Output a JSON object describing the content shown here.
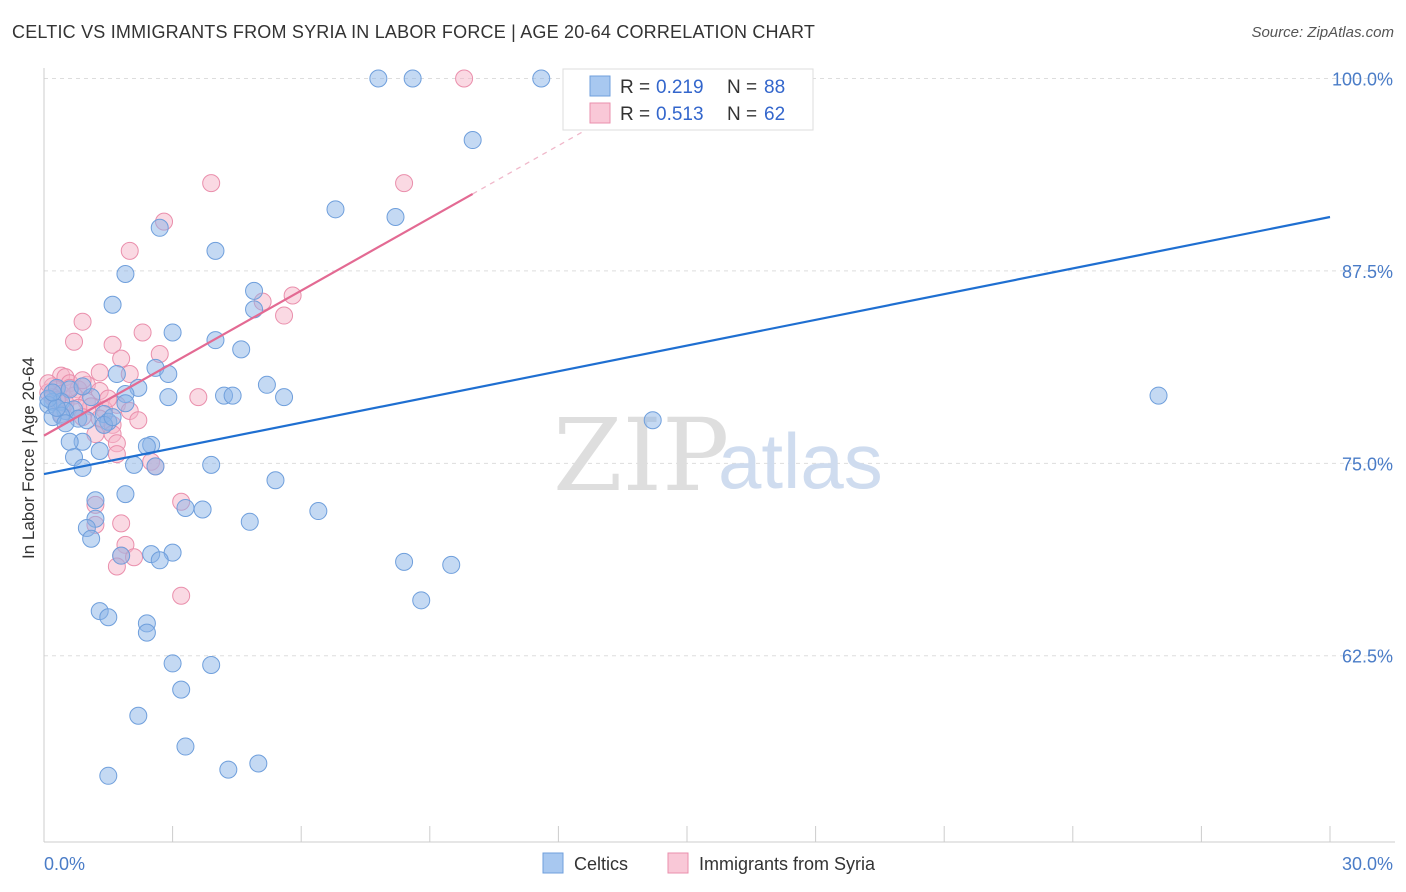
{
  "title": "CELTIC VS IMMIGRANTS FROM SYRIA IN LABOR FORCE | AGE 20-64 CORRELATION CHART",
  "source": "Source: ZipAtlas.com",
  "watermark": {
    "zip": "ZIP",
    "atlas": "atlas"
  },
  "colors": {
    "blue": "#8ab4e8",
    "blue_stroke": "#6f9fdc",
    "blue_line": "#1f6fd1",
    "pink": "#f5b3c8",
    "pink_stroke": "#ea8fac",
    "pink_line": "#e36a93",
    "grid": "#dddddd",
    "tick_text": "#4a7cc7"
  },
  "chart_data": {
    "type": "scatter",
    "title": "CELTIC VS IMMIGRANTS FROM SYRIA IN LABOR FORCE | AGE 20-64 CORRELATION CHART",
    "xlabel": "",
    "ylabel": "In Labor Force | Age 20-64",
    "xlim": [
      0,
      30
    ],
    "ylim": [
      50.4,
      101.2
    ],
    "x_tick_labels": [
      {
        "value": 0,
        "label": "0.0%"
      },
      {
        "value": 30,
        "label": "30.0%"
      }
    ],
    "y_ticks": [
      {
        "value": 100,
        "label": "100.0%"
      },
      {
        "value": 87.5,
        "label": "87.5%"
      },
      {
        "value": 75,
        "label": "75.0%"
      },
      {
        "value": 62.5,
        "label": "62.5%"
      }
    ],
    "legend": [
      {
        "r_label": "R =",
        "r_value": "0.219",
        "n_label": "N =",
        "n_value": "88"
      },
      {
        "r_label": "R =",
        "r_value": "0.513",
        "n_label": "N =",
        "n_value": "62"
      }
    ],
    "series": [
      {
        "name": "Celtics",
        "trend": {
          "x0": 0,
          "y0": 74.3,
          "x1": 30,
          "y1": 91.0,
          "dashed_to": null
        },
        "points": [
          [
            7.8,
            100
          ],
          [
            8.6,
            100
          ],
          [
            11.6,
            100
          ],
          [
            10.0,
            96
          ],
          [
            6.8,
            91.5
          ],
          [
            8.2,
            91
          ],
          [
            2.7,
            90.3
          ],
          [
            4.0,
            88.8
          ],
          [
            1.9,
            87.3
          ],
          [
            4.9,
            86.2
          ],
          [
            1.6,
            85.3
          ],
          [
            4.9,
            85.0
          ],
          [
            3.0,
            83.5
          ],
          [
            4.0,
            83
          ],
          [
            4.6,
            82.4
          ],
          [
            2.6,
            81.2
          ],
          [
            2.9,
            80.8
          ],
          [
            1.7,
            80.8
          ],
          [
            5.2,
            80.1
          ],
          [
            0.3,
            79.9
          ],
          [
            0.6,
            79.8
          ],
          [
            2.2,
            79.9
          ],
          [
            1.9,
            79.5
          ],
          [
            4.2,
            79.4
          ],
          [
            4.4,
            79.4
          ],
          [
            5.6,
            79.3
          ],
          [
            2.9,
            79.3
          ],
          [
            26.0,
            79.4
          ],
          [
            0.2,
            79.0
          ],
          [
            0.4,
            79.0
          ],
          [
            0.1,
            78.8
          ],
          [
            1.9,
            78.9
          ],
          [
            0.7,
            78.5
          ],
          [
            0.5,
            78.4
          ],
          [
            1.4,
            78.2
          ],
          [
            0.4,
            78.1
          ],
          [
            0.2,
            78.0
          ],
          [
            0.8,
            77.9
          ],
          [
            1.0,
            77.8
          ],
          [
            1.5,
            77.7
          ],
          [
            0.5,
            77.6
          ],
          [
            14.2,
            77.8
          ],
          [
            1.4,
            77.5
          ],
          [
            0.9,
            76.4
          ],
          [
            0.6,
            76.4
          ],
          [
            2.5,
            76.2
          ],
          [
            2.4,
            76.1
          ],
          [
            1.3,
            75.8
          ],
          [
            0.7,
            75.4
          ],
          [
            2.1,
            74.9
          ],
          [
            0.9,
            74.7
          ],
          [
            2.6,
            74.8
          ],
          [
            3.9,
            74.9
          ],
          [
            5.4,
            73.9
          ],
          [
            1.9,
            73.0
          ],
          [
            1.2,
            72.6
          ],
          [
            3.3,
            72.1
          ],
          [
            3.7,
            72.0
          ],
          [
            6.4,
            71.9
          ],
          [
            1.2,
            71.4
          ],
          [
            4.8,
            71.2
          ],
          [
            1.0,
            70.8
          ],
          [
            1.1,
            70.1
          ],
          [
            2.5,
            69.1
          ],
          [
            3.0,
            69.2
          ],
          [
            1.8,
            69.0
          ],
          [
            2.7,
            68.7
          ],
          [
            8.4,
            68.6
          ],
          [
            9.5,
            68.4
          ],
          [
            8.8,
            66.1
          ],
          [
            1.3,
            65.4
          ],
          [
            1.5,
            65.0
          ],
          [
            2.4,
            64.6
          ],
          [
            2.4,
            64.0
          ],
          [
            3.0,
            62.0
          ],
          [
            3.9,
            61.9
          ],
          [
            3.2,
            60.3
          ],
          [
            2.2,
            58.6
          ],
          [
            3.3,
            56.6
          ],
          [
            5.0,
            55.5
          ],
          [
            4.3,
            55.1
          ],
          [
            1.5,
            54.7
          ],
          [
            0.1,
            79.2
          ],
          [
            0.3,
            78.6
          ],
          [
            0.2,
            79.6
          ],
          [
            1.1,
            79.3
          ],
          [
            1.6,
            78.0
          ],
          [
            0.9,
            80.0
          ]
        ]
      },
      {
        "name": "Immigrants from Syria",
        "trend": {
          "x0": 0,
          "y0": 76.8,
          "x1": 10.0,
          "y1": 92.5,
          "dashed_to": {
            "x": 13.5,
            "y": 98.0
          }
        },
        "points": [
          [
            9.8,
            100
          ],
          [
            3.9,
            93.2
          ],
          [
            8.4,
            93.2
          ],
          [
            2.8,
            90.7
          ],
          [
            2.0,
            88.8
          ],
          [
            5.8,
            85.9
          ],
          [
            5.1,
            85.5
          ],
          [
            5.6,
            84.6
          ],
          [
            0.9,
            84.2
          ],
          [
            2.3,
            83.5
          ],
          [
            0.7,
            82.9
          ],
          [
            1.6,
            82.7
          ],
          [
            2.7,
            82.1
          ],
          [
            1.8,
            81.8
          ],
          [
            0.4,
            80.7
          ],
          [
            0.5,
            80.6
          ],
          [
            1.3,
            80.9
          ],
          [
            2.0,
            80.8
          ],
          [
            0.6,
            80.2
          ],
          [
            1.0,
            80.1
          ],
          [
            0.2,
            80.0
          ],
          [
            0.3,
            79.8
          ],
          [
            0.8,
            79.8
          ],
          [
            1.3,
            79.7
          ],
          [
            0.1,
            79.6
          ],
          [
            0.4,
            79.5
          ],
          [
            0.7,
            79.4
          ],
          [
            3.6,
            79.3
          ],
          [
            0.2,
            79.3
          ],
          [
            1.0,
            79.0
          ],
          [
            0.5,
            78.9
          ],
          [
            1.1,
            78.7
          ],
          [
            1.7,
            78.8
          ],
          [
            0.8,
            78.6
          ],
          [
            1.4,
            78.5
          ],
          [
            2.0,
            78.4
          ],
          [
            0.4,
            78.2
          ],
          [
            0.9,
            78.0
          ],
          [
            1.3,
            77.9
          ],
          [
            2.2,
            77.8
          ],
          [
            1.4,
            77.5
          ],
          [
            1.6,
            77.5
          ],
          [
            1.2,
            76.9
          ],
          [
            1.6,
            76.9
          ],
          [
            1.7,
            76.3
          ],
          [
            1.7,
            75.6
          ],
          [
            2.5,
            75.1
          ],
          [
            2.6,
            74.8
          ],
          [
            3.2,
            72.5
          ],
          [
            1.2,
            72.3
          ],
          [
            1.8,
            71.1
          ],
          [
            1.2,
            71.0
          ],
          [
            1.9,
            69.7
          ],
          [
            1.8,
            69.0
          ],
          [
            2.1,
            68.9
          ],
          [
            1.7,
            68.3
          ],
          [
            3.2,
            66.4
          ],
          [
            0.1,
            80.2
          ],
          [
            0.3,
            79.1
          ],
          [
            0.6,
            79.9
          ],
          [
            1.5,
            79.2
          ],
          [
            0.9,
            80.4
          ]
        ]
      }
    ]
  },
  "bottom_legend": [
    {
      "label": "Celtics"
    },
    {
      "label": "Immigrants from Syria"
    }
  ]
}
